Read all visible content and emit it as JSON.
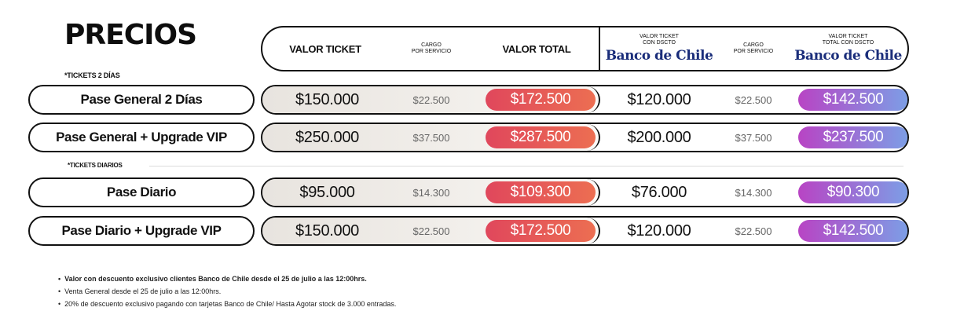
{
  "title": "PRECIOS",
  "header": {
    "valor_ticket": "VALOR TICKET",
    "cargo_1": "CARGO",
    "cargo_2": "POR SERVICIO",
    "valor_total": "VALOR TOTAL",
    "desc_ticket_1": "VALOR TICKET",
    "desc_ticket_2": "CON DSCTO",
    "bank_name": "Banco de Chile",
    "desc_cargo_1": "CARGO",
    "desc_cargo_2": "POR SERVICIO",
    "desc_total_1": "VALOR TICKET",
    "desc_total_2": "TOTAL CON DSCTO",
    "bank_name_2": "Banco de Chile"
  },
  "sections": {
    "two_days": "*TICKETS 2 DÍAS",
    "daily": "*TICKETS DIARIOS"
  },
  "rows": [
    {
      "name": "Pase General 2 Días",
      "ticket": "$150.000",
      "cargo": "$22.500",
      "total": "$172.500",
      "desc_ticket": "$120.000",
      "desc_cargo": "$22.500",
      "desc_total": "$142.500"
    },
    {
      "name": "Pase General + Upgrade VIP",
      "ticket": "$250.000",
      "cargo": "$37.500",
      "total": "$287.500",
      "desc_ticket": "$200.000",
      "desc_cargo": "$37.500",
      "desc_total": "$237.500"
    },
    {
      "name": "Pase Diario",
      "ticket": "$95.000",
      "cargo": "$14.300",
      "total": "$109.300",
      "desc_ticket": "$76.000",
      "desc_cargo": "$14.300",
      "desc_total": "$90.300"
    },
    {
      "name": "Pase Diario + Upgrade VIP",
      "ticket": "$150.000",
      "cargo": "$22.500",
      "total": "$172.500",
      "desc_ticket": "$120.000",
      "desc_cargo": "$22.500",
      "desc_total": "$142.500"
    }
  ],
  "notes": [
    "Valor con descuento exclusivo clientes Banco de Chile desde el 25 de julio a las 12:00hrs.",
    "Venta General desde el 25 de julio a las 12:00hrs.",
    "20% de descuento exclusivo pagando con tarjetas Banco de Chile/ Hasta Agotar stock de 3.000 entradas."
  ],
  "colors": {
    "total_gradient": [
      "#e0475c",
      "#ec6e52"
    ],
    "discount_gradient": [
      "#b844c4",
      "#7c9ee6"
    ],
    "bank_blue": "#1a2d7a"
  }
}
